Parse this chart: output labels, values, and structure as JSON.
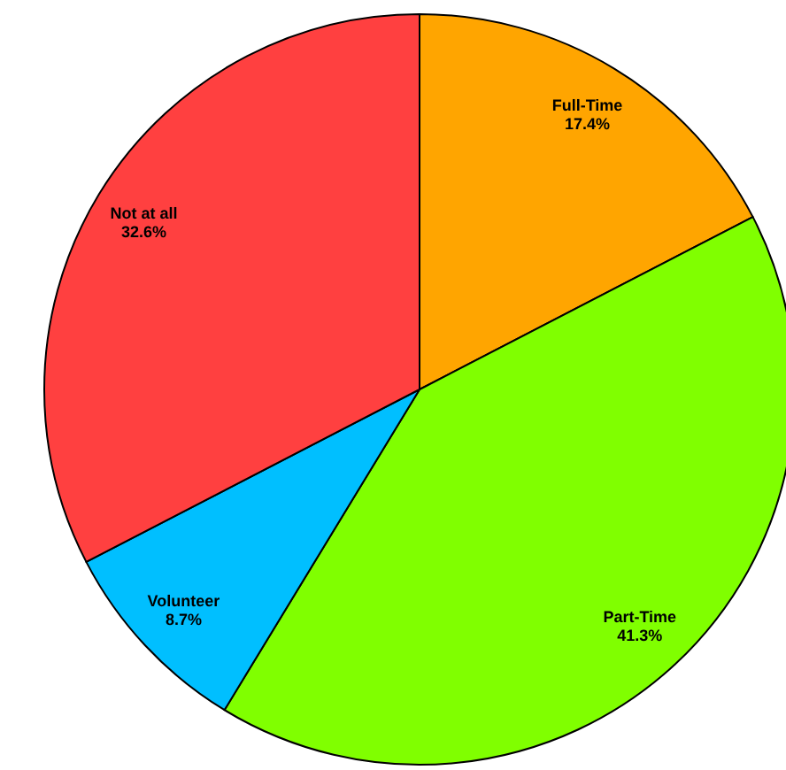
{
  "chart_data": {
    "type": "pie",
    "categories": [
      "Full-Time",
      "Part-Time",
      "Volunteer",
      "Not at all"
    ],
    "values": [
      17.4,
      41.3,
      8.7,
      32.6
    ],
    "colors": [
      "#ffa500",
      "#80ff00",
      "#00bfff",
      "#ff4040"
    ],
    "value_labels": [
      "17.4%",
      "41.3%",
      "8.7%",
      "32.6%"
    ]
  }
}
